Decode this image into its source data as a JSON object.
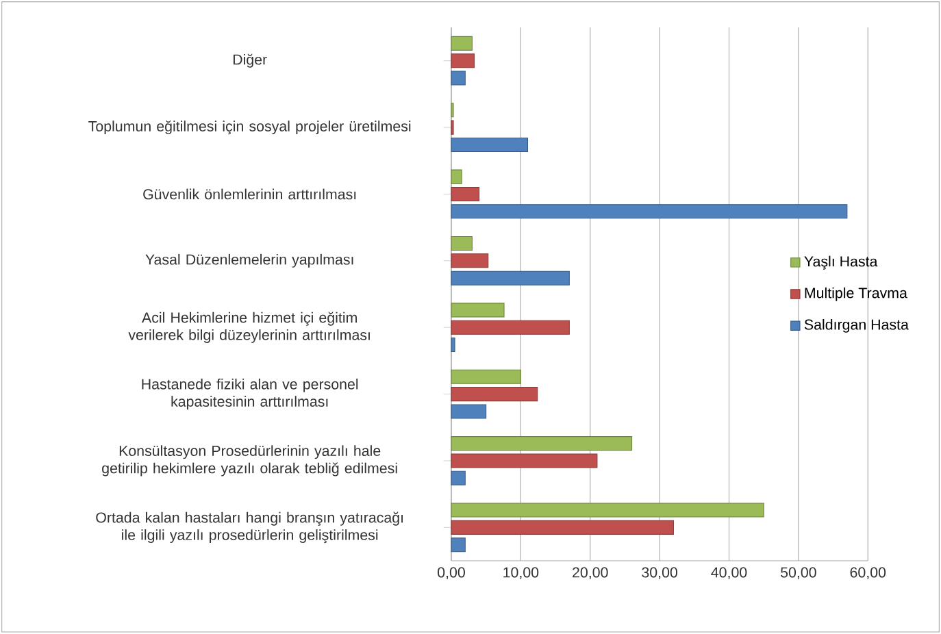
{
  "chart_data": {
    "type": "bar",
    "orientation": "horizontal",
    "categories": [
      "Diğer",
      "Toplumun eğitilmesi için sosyal projeler üretilmesi",
      "Güvenlik önlemlerinin arttırılması",
      "Yasal Düzenlemelerin yapılması",
      "Acil Hekimlerine hizmet içi eğitim verilerek bilgi düzeylerinin arttırılması",
      "Hastanede fiziki alan ve personel kapasitesinin arttırılması",
      "Konsültasyon Prosedürlerinin yazılı hale getirilip hekimlere yazılı olarak tebliğ edilmesi",
      "Ortada kalan hastaları hangi branşın yatıracağı ile ilgili yazılı prosedürlerin geliştirilmesi"
    ],
    "series": [
      {
        "name": "Saldırgan Hasta",
        "color": "#4f81bd",
        "values": [
          2,
          11,
          57,
          17,
          0.5,
          5,
          2,
          2
        ]
      },
      {
        "name": "Multiple Travma",
        "color": "#c0504d",
        "values": [
          3.3,
          0.3,
          4,
          5.3,
          17,
          12.4,
          21,
          32
        ]
      },
      {
        "name": "Yaşlı Hasta",
        "color": "#9bbb59",
        "values": [
          3,
          0.3,
          1.5,
          3,
          7.6,
          10,
          26,
          45
        ]
      }
    ],
    "xlim": [
      0,
      60
    ],
    "xticks": [
      {
        "value": 0,
        "label": "0,00"
      },
      {
        "value": 10,
        "label": "10,00"
      },
      {
        "value": 20,
        "label": "20,00"
      },
      {
        "value": 30,
        "label": "30,00"
      },
      {
        "value": 40,
        "label": "40,00"
      },
      {
        "value": 50,
        "label": "50,00"
      },
      {
        "value": 60,
        "label": "60,00"
      }
    ],
    "grid": "x",
    "legend": "right"
  }
}
